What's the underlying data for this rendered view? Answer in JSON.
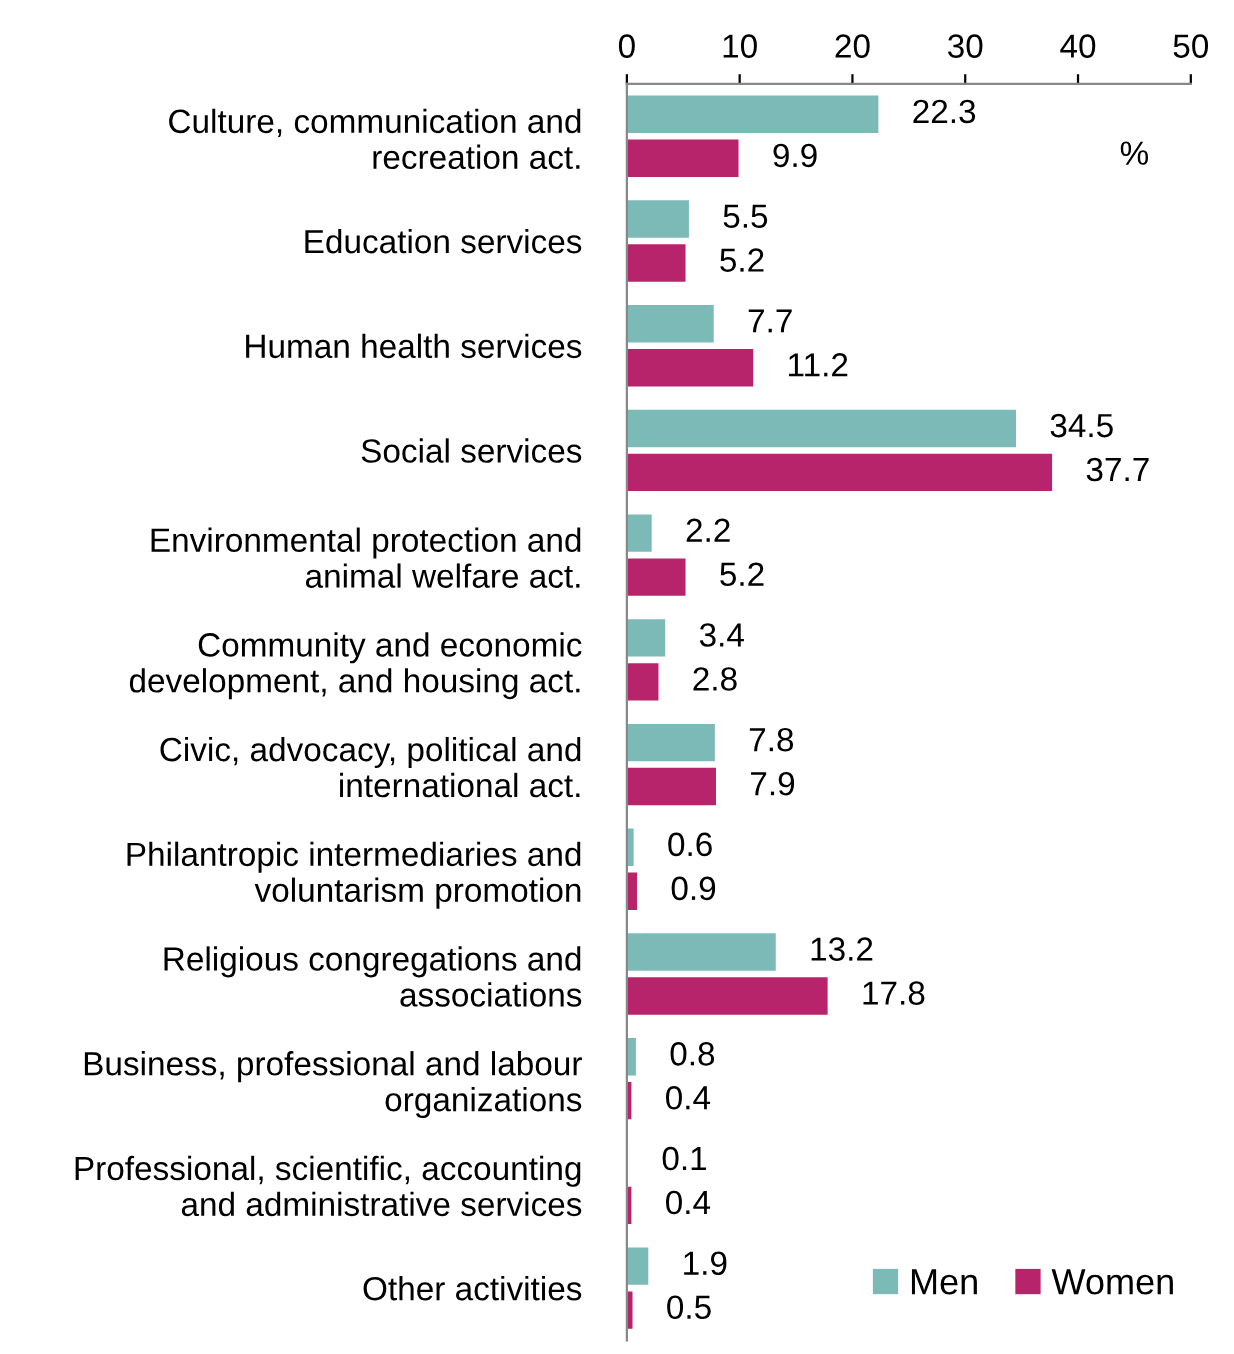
{
  "chart_data": {
    "type": "bar",
    "orientation": "horizontal",
    "xlabel": "%",
    "categories": [
      "Culture, communication and\nrecreation act.",
      "Education services",
      "Human health services",
      "Social services",
      "Environmental protection and\nanimal welfare act.",
      "Community and economic\ndevelopment, and housing act.",
      "Civic, advocacy, political and\ninternational act.",
      "Philantropic intermediaries and\nvoluntarism promotion",
      "Religious congregations and\nassociations",
      "Business, professional and labour\norganizations",
      "Professional, scientific, accounting\nand administrative services",
      "Other activities"
    ],
    "series": [
      {
        "name": "Men",
        "color": "#7bbab7",
        "values": [
          22.3,
          5.5,
          7.7,
          34.5,
          2.2,
          3.4,
          7.8,
          0.6,
          13.2,
          0.8,
          0.1,
          1.9
        ]
      },
      {
        "name": "Women",
        "color": "#b7246c",
        "values": [
          9.9,
          5.2,
          11.2,
          37.7,
          5.2,
          2.8,
          7.9,
          0.9,
          17.8,
          0.4,
          0.4,
          0.5
        ]
      }
    ],
    "xlim": [
      0,
      50
    ],
    "xticks": [
      0,
      10,
      20,
      30,
      40,
      50
    ],
    "grid": false,
    "legend": "bottom right",
    "data_labels": true
  }
}
